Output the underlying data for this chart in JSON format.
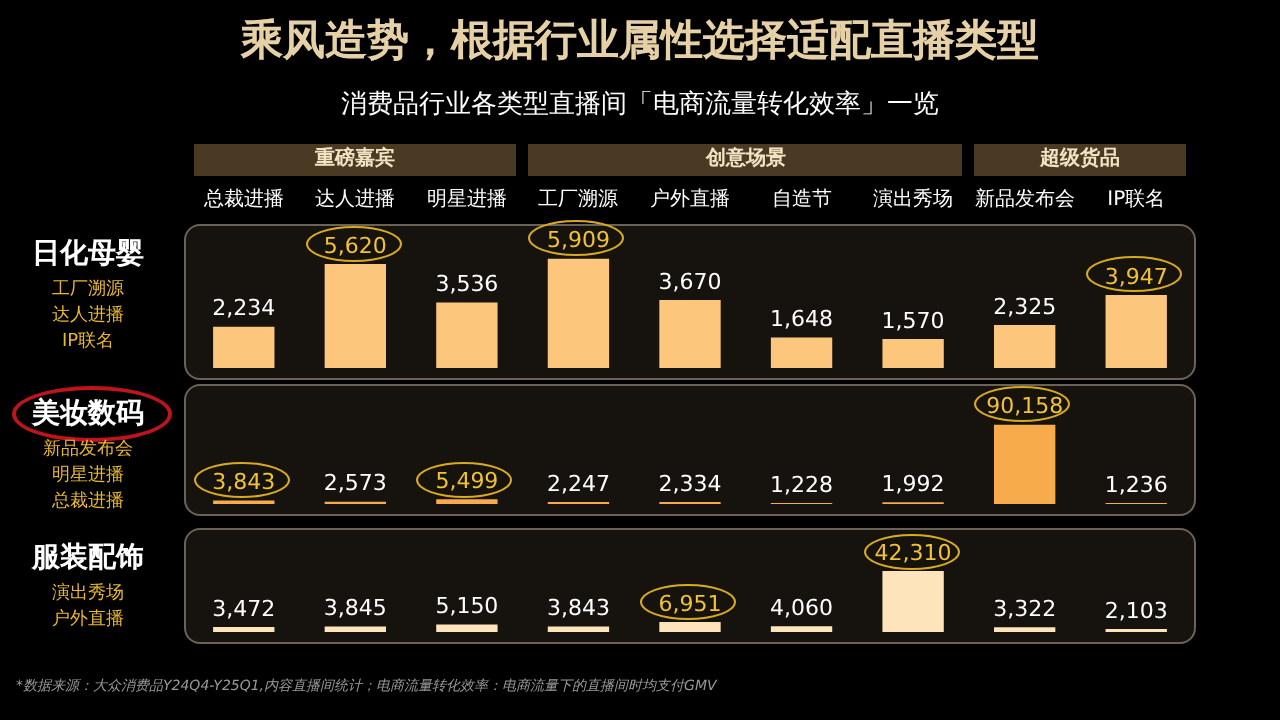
{
  "chart_data": [
    {
      "type": "bar",
      "title": "乘风造势，根据行业属性选择适配直播类型",
      "subtitle": "消费品行业各类型直播间「电商流量转化效率」一览",
      "ylabel": "日化母婴",
      "annotations": [
        "重磅嘉宾",
        "创意场景",
        "超级货品",
        "工厂溯源",
        "达人进播",
        "IP联名"
      ],
      "categories": [
        "总裁进播",
        "达人进播",
        "明星进播",
        "工厂溯源",
        "户外直播",
        "自造节",
        "演出秀场",
        "新品发布会",
        "IP联名"
      ],
      "values": [
        2234,
        5620,
        3536,
        5909,
        3670,
        1648,
        1570,
        2325,
        3947
      ],
      "color": "#fcc77c",
      "value_labels": [
        "2,234",
        "5,620",
        "3,536",
        "5,909",
        "3,670",
        "1,648",
        "1,570",
        "2,325",
        "3,947"
      ],
      "tick_labels": "x"
    },
    {
      "type": "bar",
      "ylabel": "美妆数码",
      "annotations": [
        "新品发布会",
        "明星进播",
        "总裁进播"
      ],
      "values": [
        3843,
        2573,
        5499,
        2247,
        2334,
        1228,
        1992,
        90158,
        1236
      ],
      "color": "#f8ab4b",
      "value_labels": [
        "3,843",
        "2,573",
        "5,499",
        "2,247",
        "2,334",
        "1,228",
        "1,992",
        "90,158",
        "1,236"
      ],
      "tick_labels": false
    },
    {
      "type": "bar",
      "ylabel": "服装配饰",
      "annotations": [
        "演出秀场",
        "户外直播",
        "*数据来源：大众消费品Y24Q4-Y25Q1,内容直播间统计；电商流量转化效率：电商流量下的直播间时均支付GMV"
      ],
      "values": [
        3472,
        3845,
        5150,
        3843,
        6951,
        4060,
        42310,
        3322,
        2103
      ],
      "color": "#fde4bb",
      "value_labels": [
        "3,472",
        "3,845",
        "5,150",
        "3,843",
        "6,951",
        "4,060",
        "42,310",
        "3,322",
        "2,103"
      ],
      "tick_labels": false
    }
  ]
}
